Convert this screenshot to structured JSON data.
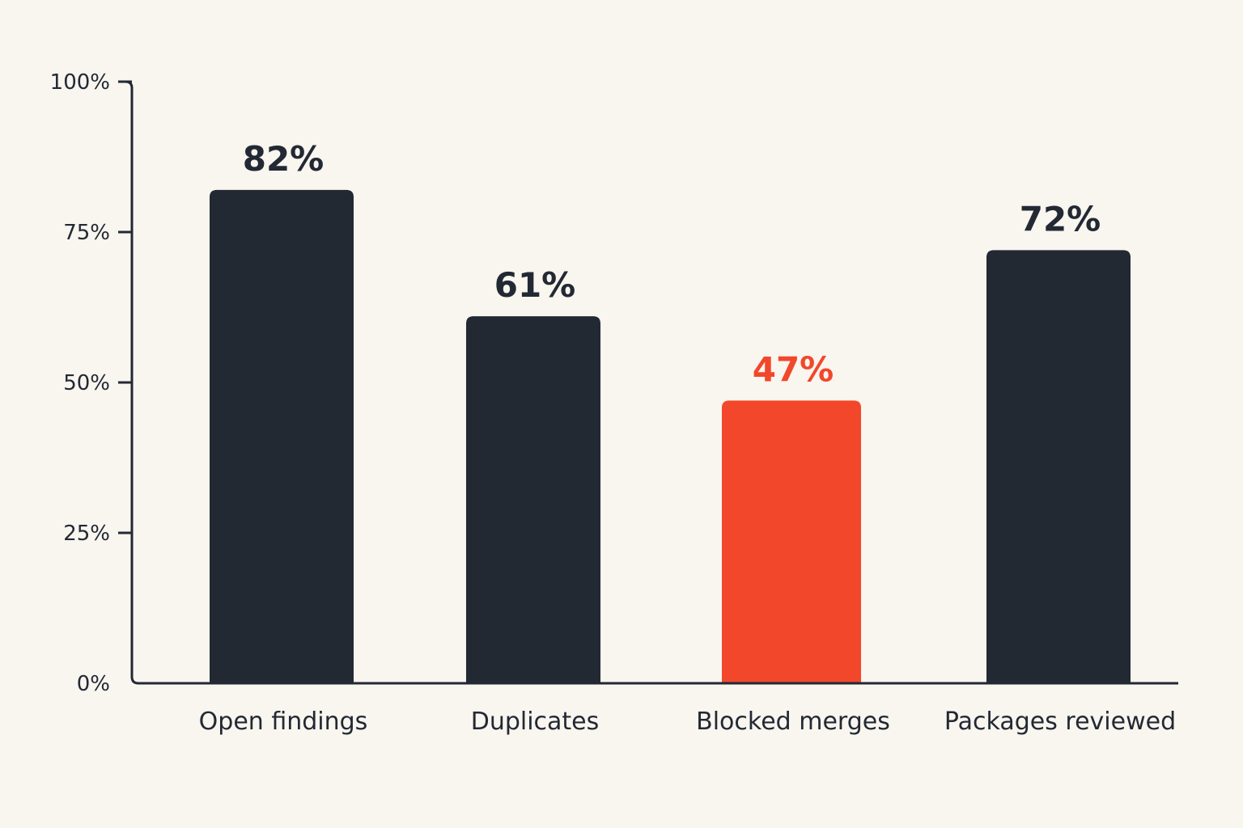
{
  "chart_data": {
    "type": "bar",
    "title": "",
    "xlabel": "",
    "ylabel": "",
    "categories": [
      "Open findings",
      "Duplicates",
      "Blocked merges",
      "Packages reviewed"
    ],
    "values": [
      82,
      61,
      47,
      72
    ],
    "data_labels": [
      "82%",
      "61%",
      "47%",
      "72%"
    ],
    "highlight_index": 2,
    "ylim": [
      0,
      100
    ],
    "yticks": [
      0,
      25,
      50,
      75,
      100
    ],
    "ytick_labels": [
      "0%",
      "25%",
      "50%",
      "75%",
      "100%"
    ],
    "grid": false,
    "legend": "none",
    "colors": {
      "bar": "#222933",
      "highlight": "#f2472b",
      "axis": "#222933",
      "text": "#222933",
      "background": "#f9f5ef"
    }
  }
}
